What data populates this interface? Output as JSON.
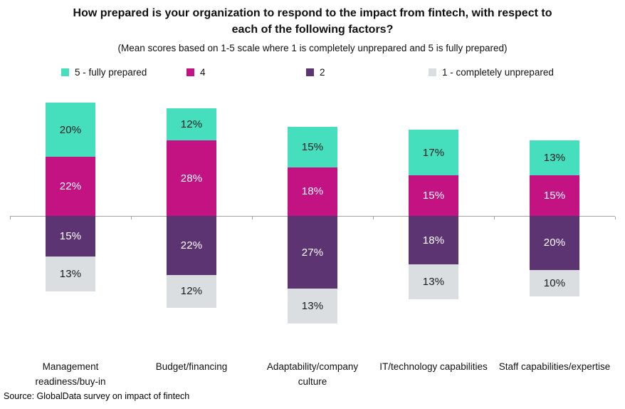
{
  "title": "How prepared is your organization to respond to the impact from fintech, with respect to each of the following factors?",
  "subtitle": "(Mean scores based on 1-5 scale where 1 is completely unprepared and 5 is fully prepared)",
  "source": "Source: GlobalData survey on impact of fintech",
  "colors": {
    "teal": "#45DFBE",
    "magenta": "#C31383",
    "purple": "#5C3471",
    "light_gray": "#DBDEE1",
    "axis": "#A3A3A3",
    "dark_text": "#1B1B1B",
    "light_text": "#FFFFFF"
  },
  "legend": [
    {
      "label": "5 - fully prepared",
      "color": "#45DFBE"
    },
    {
      "label": "4",
      "color": "#C31383"
    },
    {
      "label": "2",
      "color": "#5C3471"
    },
    {
      "label": "1 - completely unprepared",
      "color": "#DBDEE1"
    }
  ],
  "chart_data": {
    "type": "bar",
    "subtype": "diverging-stacked-column",
    "title": "How prepared is your organization to respond to the impact from fintech, with respect to each of the following factors?",
    "subtitle": "(Mean scores based on 1-5 scale where 1 is completely unprepared and 5 is fully prepared)",
    "value_unit": "%",
    "legend_position": "top",
    "grid": "off",
    "baseline": 0,
    "categories": [
      "Management readiness/buy-in",
      "Budget/financing",
      "Adaptability/company culture",
      "IT/technology capabilities",
      "Staff capabilities/expertise"
    ],
    "series": [
      {
        "name": "5 - fully prepared",
        "stack": "above",
        "color": "#45DFBE",
        "text_color": "#1B1B1B",
        "values": [
          20,
          12,
          15,
          17,
          13
        ]
      },
      {
        "name": "4",
        "stack": "above",
        "color": "#C31383",
        "text_color": "#FFFFFF",
        "values": [
          22,
          28,
          18,
          15,
          15
        ]
      },
      {
        "name": "2",
        "stack": "below",
        "color": "#5C3471",
        "text_color": "#FFFFFF",
        "values": [
          15,
          22,
          27,
          18,
          20
        ]
      },
      {
        "name": "1 - completely unprepared",
        "stack": "below",
        "color": "#DBDEE1",
        "text_color": "#1B1B1B",
        "values": [
          13,
          12,
          13,
          13,
          10
        ]
      }
    ]
  }
}
